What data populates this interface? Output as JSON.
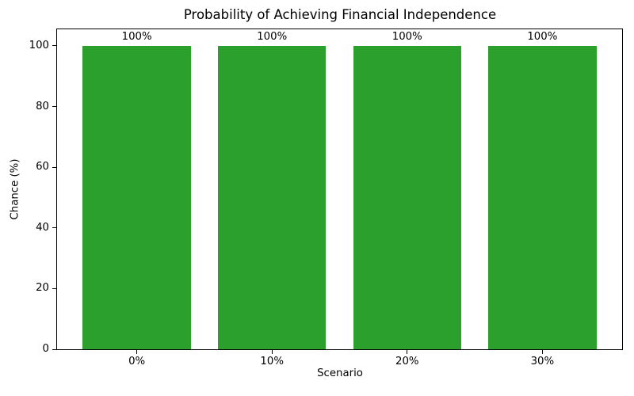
{
  "chart_data": {
    "type": "bar",
    "title": "Probability of Achieving Financial Independence",
    "xlabel": "Scenario",
    "ylabel": "Chance (%)",
    "categories": [
      "0%",
      "10%",
      "20%",
      "30%"
    ],
    "values": [
      100,
      100,
      100,
      100
    ],
    "bar_labels": [
      "100%",
      "100%",
      "100%",
      "100%"
    ],
    "yticks": [
      0,
      20,
      40,
      60,
      80,
      100
    ],
    "ytick_labels": [
      "0",
      "20",
      "40",
      "60",
      "80",
      "100"
    ],
    "ylim": [
      0,
      105.45
    ],
    "bar_width_fraction": 0.8,
    "grid": false,
    "legend": null,
    "colors": {
      "bar": "#2ca02c",
      "text": "#000000",
      "spine": "#000000",
      "background": "#ffffff"
    }
  }
}
